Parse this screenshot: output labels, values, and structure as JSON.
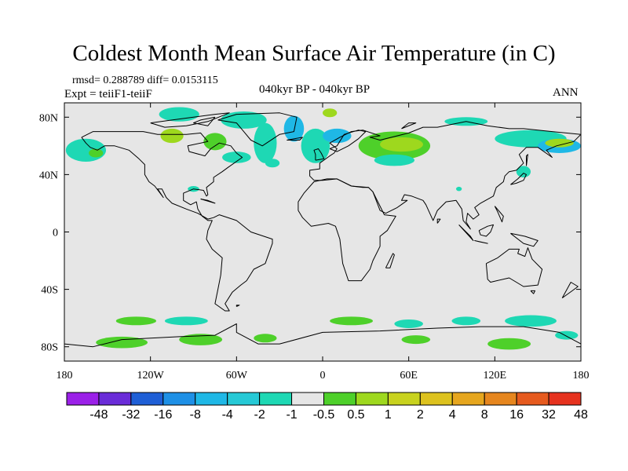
{
  "title": "Coldest Month Mean Surface Air Temperature (in C)",
  "stats_line": "rmsd= 0.288789 diff= 0.0153115",
  "experiment_line": "Expt = teiiF1-teiiF",
  "period_label": "040kyr BP - 040kyr BP",
  "season_label": "ANN",
  "axes": {
    "lon_ticks": [
      {
        "value": -180,
        "label": "180"
      },
      {
        "value": -120,
        "label": "120W"
      },
      {
        "value": -60,
        "label": "60W"
      },
      {
        "value": 0,
        "label": "0"
      },
      {
        "value": 60,
        "label": "60E"
      },
      {
        "value": 120,
        "label": "120E"
      },
      {
        "value": 180,
        "label": "180"
      }
    ],
    "lat_ticks": [
      {
        "value": 80,
        "label": "80N"
      },
      {
        "value": 40,
        "label": "40N"
      },
      {
        "value": 0,
        "label": "0"
      },
      {
        "value": -40,
        "label": "40S"
      },
      {
        "value": -80,
        "label": "80S"
      }
    ],
    "lon_range": [
      -180,
      180
    ],
    "lat_range": [
      -90,
      90
    ]
  },
  "colorbar": {
    "colors": [
      "#9b20e8",
      "#6a2cd8",
      "#1f5fd6",
      "#1e90e6",
      "#1fb8e6",
      "#26c9d6",
      "#1ed8b4",
      "#e6e6e6",
      "#4ed02a",
      "#9ed81e",
      "#c8d21e",
      "#ddc21e",
      "#e6a61e",
      "#e6861e",
      "#e65a1e",
      "#e6321e"
    ],
    "labels": [
      "-48",
      "-32",
      "-16",
      "-8",
      "-4",
      "-2",
      "-1",
      "-0.5",
      "0.5",
      "1",
      "2",
      "4",
      "8",
      "16",
      "32",
      "48"
    ]
  },
  "anomaly_patches": [
    {
      "lon": -100,
      "lat": 82,
      "rx": 14,
      "ry": 5,
      "color": "#1ed8b4"
    },
    {
      "lon": -55,
      "lat": 78,
      "rx": 16,
      "ry": 6,
      "color": "#1ed8b4"
    },
    {
      "lon": -40,
      "lat": 62,
      "rx": 8,
      "ry": 14,
      "color": "#1ed8b4"
    },
    {
      "lon": -20,
      "lat": 72,
      "rx": 7,
      "ry": 9,
      "color": "#1fb8e6"
    },
    {
      "lon": -75,
      "lat": 63,
      "rx": 8,
      "ry": 6,
      "color": "#4ed02a"
    },
    {
      "lon": -105,
      "lat": 67,
      "rx": 8,
      "ry": 5,
      "color": "#9ed81e"
    },
    {
      "lon": -165,
      "lat": 57,
      "rx": 14,
      "ry": 8,
      "color": "#1ed8b4"
    },
    {
      "lon": -158,
      "lat": 55,
      "rx": 5,
      "ry": 3,
      "color": "#4ed02a"
    },
    {
      "lon": -60,
      "lat": 52,
      "rx": 10,
      "ry": 4,
      "color": "#1ed8b4"
    },
    {
      "lon": -35,
      "lat": 48,
      "rx": 5,
      "ry": 3,
      "color": "#1ed8b4"
    },
    {
      "lon": -5,
      "lat": 60,
      "rx": 10,
      "ry": 12,
      "color": "#1ed8b4"
    },
    {
      "lon": 10,
      "lat": 67,
      "rx": 10,
      "ry": 5,
      "color": "#1fb8e6"
    },
    {
      "lon": 5,
      "lat": 83,
      "rx": 5,
      "ry": 3,
      "color": "#9ed81e"
    },
    {
      "lon": 50,
      "lat": 60,
      "rx": 25,
      "ry": 10,
      "color": "#4ed02a"
    },
    {
      "lon": 55,
      "lat": 61,
      "rx": 15,
      "ry": 5,
      "color": "#9ed81e"
    },
    {
      "lon": 50,
      "lat": 50,
      "rx": 14,
      "ry": 4,
      "color": "#1ed8b4"
    },
    {
      "lon": 100,
      "lat": 77,
      "rx": 15,
      "ry": 3,
      "color": "#1ed8b4"
    },
    {
      "lon": 145,
      "lat": 65,
      "rx": 25,
      "ry": 6,
      "color": "#1ed8b4"
    },
    {
      "lon": 165,
      "lat": 60,
      "rx": 15,
      "ry": 5,
      "color": "#1fb8e6"
    },
    {
      "lon": 165,
      "lat": 62,
      "rx": 10,
      "ry": 3,
      "color": "#9ed81e"
    },
    {
      "lon": 140,
      "lat": 42,
      "rx": 5,
      "ry": 4,
      "color": "#1ed8b4"
    },
    {
      "lon": 95,
      "lat": 30,
      "rx": 2,
      "ry": 1.5,
      "color": "#1ed8b4"
    },
    {
      "lon": -90,
      "lat": 30,
      "rx": 4,
      "ry": 2,
      "color": "#1ed8b4"
    },
    {
      "lon": -130,
      "lat": -62,
      "rx": 14,
      "ry": 3,
      "color": "#4ed02a"
    },
    {
      "lon": -95,
      "lat": -62,
      "rx": 15,
      "ry": 3,
      "color": "#1ed8b4"
    },
    {
      "lon": -140,
      "lat": -77,
      "rx": 18,
      "ry": 4,
      "color": "#4ed02a"
    },
    {
      "lon": -85,
      "lat": -75,
      "rx": 15,
      "ry": 4,
      "color": "#4ed02a"
    },
    {
      "lon": -40,
      "lat": -74,
      "rx": 8,
      "ry": 3,
      "color": "#4ed02a"
    },
    {
      "lon": 20,
      "lat": -62,
      "rx": 15,
      "ry": 3,
      "color": "#4ed02a"
    },
    {
      "lon": 60,
      "lat": -64,
      "rx": 10,
      "ry": 3,
      "color": "#1ed8b4"
    },
    {
      "lon": 65,
      "lat": -75,
      "rx": 10,
      "ry": 3,
      "color": "#4ed02a"
    },
    {
      "lon": 100,
      "lat": -62,
      "rx": 10,
      "ry": 3,
      "color": "#1ed8b4"
    },
    {
      "lon": 145,
      "lat": -62,
      "rx": 18,
      "ry": 4,
      "color": "#1ed8b4"
    },
    {
      "lon": 130,
      "lat": -78,
      "rx": 15,
      "ry": 4,
      "color": "#4ed02a"
    },
    {
      "lon": 170,
      "lat": -72,
      "rx": 8,
      "ry": 3,
      "color": "#1ed8b4"
    }
  ],
  "coastlines": [
    [
      [
        -168,
        66
      ],
      [
        -160,
        70
      ],
      [
        -140,
        70
      ],
      [
        -125,
        70
      ],
      [
        -115,
        68
      ],
      [
        -95,
        68
      ],
      [
        -85,
        69
      ],
      [
        -80,
        63
      ],
      [
        -94,
        60
      ],
      [
        -93,
        56
      ],
      [
        -82,
        53
      ],
      [
        -78,
        58
      ],
      [
        -72,
        62
      ],
      [
        -64,
        60
      ],
      [
        -60,
        55
      ],
      [
        -56,
        52
      ],
      [
        -66,
        45
      ],
      [
        -70,
        42
      ],
      [
        -76,
        38
      ],
      [
        -76,
        35
      ],
      [
        -81,
        31
      ],
      [
        -80,
        26
      ],
      [
        -81,
        25
      ],
      [
        -83,
        29
      ],
      [
        -90,
        30
      ],
      [
        -97,
        27
      ],
      [
        -97,
        22
      ],
      [
        -92,
        19
      ],
      [
        -88,
        21
      ],
      [
        -87,
        16
      ],
      [
        -84,
        11
      ],
      [
        -80,
        8
      ],
      [
        -77,
        8
      ],
      [
        -80,
        1
      ],
      [
        -81,
        -5
      ],
      [
        -77,
        -12
      ],
      [
        -70,
        -18
      ],
      [
        -71,
        -30
      ],
      [
        -73,
        -40
      ],
      [
        -75,
        -50
      ],
      [
        -68,
        -55
      ],
      [
        -65,
        -55
      ],
      [
        -68,
        -50
      ],
      [
        -63,
        -42
      ],
      [
        -57,
        -37
      ],
      [
        -53,
        -34
      ],
      [
        -48,
        -26
      ],
      [
        -40,
        -22
      ],
      [
        -35,
        -8
      ],
      [
        -35,
        -5
      ],
      [
        -50,
        0
      ],
      [
        -60,
        8
      ],
      [
        -72,
        12
      ],
      [
        -76,
        10
      ],
      [
        -80,
        9
      ],
      [
        -87,
        13
      ],
      [
        -95,
        16
      ],
      [
        -105,
        20
      ],
      [
        -109,
        24
      ],
      [
        -112,
        30
      ],
      [
        -115,
        30
      ],
      [
        -111,
        24
      ],
      [
        -117,
        32
      ],
      [
        -121,
        35
      ],
      [
        -124,
        40
      ],
      [
        -124,
        47
      ],
      [
        -128,
        51
      ],
      [
        -135,
        57
      ],
      [
        -145,
        60
      ],
      [
        -152,
        60
      ],
      [
        -157,
        57
      ],
      [
        -162,
        59
      ],
      [
        -165,
        62
      ],
      [
        -168,
        66
      ]
    ],
    [
      [
        -73,
        78
      ],
      [
        -60,
        82
      ],
      [
        -30,
        83
      ],
      [
        -18,
        80
      ],
      [
        -20,
        70
      ],
      [
        -30,
        68
      ],
      [
        -42,
        60
      ],
      [
        -50,
        64
      ],
      [
        -55,
        70
      ],
      [
        -60,
        76
      ],
      [
        -73,
        78
      ]
    ],
    [
      [
        -120,
        76
      ],
      [
        -105,
        78
      ],
      [
        -90,
        80
      ],
      [
        -75,
        82
      ],
      [
        -65,
        83
      ],
      [
        -80,
        77
      ],
      [
        -95,
        74
      ],
      [
        -110,
        73
      ],
      [
        -120,
        76
      ]
    ],
    [
      [
        -6,
        36
      ],
      [
        -9,
        39
      ],
      [
        -9,
        43
      ],
      [
        -2,
        44
      ],
      [
        -2,
        48
      ],
      [
        5,
        53
      ],
      [
        8,
        55
      ],
      [
        10,
        58
      ],
      [
        5,
        62
      ],
      [
        12,
        66
      ],
      [
        20,
        70
      ],
      [
        28,
        71
      ],
      [
        40,
        67
      ],
      [
        33,
        66
      ],
      [
        40,
        64
      ],
      [
        60,
        69
      ],
      [
        70,
        73
      ],
      [
        80,
        73
      ],
      [
        100,
        77
      ],
      [
        115,
        74
      ],
      [
        130,
        72
      ],
      [
        140,
        72
      ],
      [
        160,
        70
      ],
      [
        180,
        68
      ],
      [
        175,
        63
      ],
      [
        163,
        60
      ],
      [
        156,
        57
      ],
      [
        160,
        52
      ],
      [
        150,
        59
      ],
      [
        142,
        59
      ],
      [
        137,
        54
      ],
      [
        140,
        48
      ],
      [
        135,
        43
      ],
      [
        130,
        42
      ],
      [
        127,
        39
      ],
      [
        126,
        35
      ],
      [
        121,
        31
      ],
      [
        119,
        25
      ],
      [
        110,
        20
      ],
      [
        106,
        17
      ],
      [
        109,
        12
      ],
      [
        105,
        9
      ],
      [
        101,
        13
      ],
      [
        100,
        7
      ],
      [
        103,
        2
      ],
      [
        98,
        8
      ],
      [
        97,
        16
      ],
      [
        93,
        22
      ],
      [
        86,
        21
      ],
      [
        80,
        15
      ],
      [
        77,
        8
      ],
      [
        72,
        19
      ],
      [
        70,
        22
      ],
      [
        62,
        25
      ],
      [
        57,
        26
      ],
      [
        55,
        22
      ],
      [
        59,
        22
      ],
      [
        52,
        17
      ],
      [
        44,
        13
      ],
      [
        40,
        15
      ],
      [
        35,
        28
      ],
      [
        32,
        31
      ],
      [
        28,
        31
      ],
      [
        20,
        32
      ],
      [
        10,
        37
      ],
      [
        0,
        36
      ],
      [
        -6,
        36
      ]
    ],
    [
      [
        -17,
        15
      ],
      [
        -17,
        21
      ],
      [
        -13,
        27
      ],
      [
        -6,
        35
      ],
      [
        3,
        37
      ],
      [
        10,
        37
      ],
      [
        20,
        32
      ],
      [
        32,
        31
      ],
      [
        35,
        28
      ],
      [
        43,
        12
      ],
      [
        51,
        11
      ],
      [
        45,
        1
      ],
      [
        40,
        -3
      ],
      [
        40,
        -10
      ],
      [
        35,
        -20
      ],
      [
        33,
        -26
      ],
      [
        27,
        -34
      ],
      [
        18,
        -34
      ],
      [
        14,
        -22
      ],
      [
        12,
        -5
      ],
      [
        9,
        4
      ],
      [
        4,
        6
      ],
      [
        -8,
        4
      ],
      [
        -14,
        10
      ],
      [
        -17,
        15
      ]
    ],
    [
      [
        114,
        -22
      ],
      [
        122,
        -18
      ],
      [
        130,
        -12
      ],
      [
        137,
        -12
      ],
      [
        136,
        -15
      ],
      [
        141,
        -17
      ],
      [
        143,
        -11
      ],
      [
        146,
        -19
      ],
      [
        153,
        -26
      ],
      [
        150,
        -37
      ],
      [
        140,
        -38
      ],
      [
        135,
        -35
      ],
      [
        130,
        -32
      ],
      [
        117,
        -35
      ],
      [
        115,
        -33
      ],
      [
        114,
        -22
      ]
    ],
    [
      [
        -180,
        -78
      ],
      [
        -160,
        -80
      ],
      [
        -140,
        -75
      ],
      [
        -100,
        -73
      ],
      [
        -75,
        -72
      ],
      [
        -60,
        -64
      ],
      [
        -60,
        -70
      ],
      [
        -45,
        -78
      ],
      [
        -30,
        -78
      ],
      [
        0,
        -70
      ],
      [
        40,
        -69
      ],
      [
        80,
        -67
      ],
      [
        110,
        -66
      ],
      [
        140,
        -66
      ],
      [
        165,
        -70
      ],
      [
        180,
        -78
      ]
    ],
    [
      [
        -5,
        50
      ],
      [
        1,
        51
      ],
      [
        -1,
        55
      ],
      [
        -3,
        58
      ],
      [
        -6,
        57
      ],
      [
        -5,
        54
      ],
      [
        -5,
        50
      ]
    ],
    [
      [
        5,
        58
      ],
      [
        10,
        60
      ],
      [
        15,
        68
      ],
      [
        25,
        71
      ],
      [
        30,
        70
      ],
      [
        25,
        65
      ],
      [
        18,
        60
      ],
      [
        10,
        56
      ],
      [
        5,
        58
      ]
    ],
    [
      [
        131,
        33
      ],
      [
        135,
        34
      ],
      [
        140,
        36
      ],
      [
        142,
        40
      ],
      [
        140,
        41
      ],
      [
        136,
        37
      ],
      [
        131,
        33
      ]
    ],
    [
      [
        95,
        5
      ],
      [
        105,
        -6
      ],
      [
        103,
        -3
      ],
      [
        95,
        5
      ]
    ],
    [
      [
        110,
        -7
      ],
      [
        115,
        -8
      ],
      [
        106,
        -6
      ],
      [
        110,
        -7
      ]
    ],
    [
      [
        109,
        1
      ],
      [
        115,
        4
      ],
      [
        119,
        5
      ],
      [
        117,
        0
      ],
      [
        114,
        -3
      ],
      [
        110,
        -2
      ],
      [
        109,
        1
      ]
    ],
    [
      [
        131,
        -1
      ],
      [
        141,
        -3
      ],
      [
        150,
        -6
      ],
      [
        147,
        -10
      ],
      [
        140,
        -8
      ],
      [
        131,
        -1
      ]
    ],
    [
      [
        44,
        -25
      ],
      [
        49,
        -15
      ],
      [
        50,
        -16
      ],
      [
        47,
        -25
      ],
      [
        44,
        -25
      ]
    ],
    [
      [
        167,
        -46
      ],
      [
        174,
        -41
      ],
      [
        178,
        -38
      ],
      [
        173,
        -35
      ],
      [
        167,
        -46
      ]
    ],
    [
      [
        -85,
        23
      ],
      [
        -75,
        20
      ],
      [
        -80,
        22
      ],
      [
        -85,
        23
      ]
    ],
    [
      [
        -25,
        64
      ],
      [
        -14,
        66
      ],
      [
        -16,
        64
      ],
      [
        -25,
        64
      ]
    ],
    [
      [
        145,
        -41
      ],
      [
        148,
        -41
      ],
      [
        147,
        -43
      ],
      [
        145,
        -41
      ]
    ],
    [
      [
        80,
        6
      ],
      [
        82,
        9
      ],
      [
        80,
        9
      ],
      [
        80,
        6
      ]
    ],
    [
      [
        120,
        18
      ],
      [
        122,
        14
      ],
      [
        125,
        7
      ],
      [
        126,
        11
      ],
      [
        120,
        18
      ]
    ],
    [
      [
        -60,
        -52
      ],
      [
        -58,
        -51
      ],
      [
        -60,
        -51
      ],
      [
        -60,
        -52
      ]
    ],
    [
      [
        -75,
        80
      ],
      [
        -85,
        78
      ],
      [
        -90,
        76
      ],
      [
        -80,
        74
      ],
      [
        -75,
        80
      ]
    ],
    [
      [
        142,
        46
      ],
      [
        143,
        54
      ],
      [
        142,
        53
      ],
      [
        142,
        46
      ]
    ],
    [
      [
        55,
        72
      ],
      [
        60,
        76
      ],
      [
        65,
        76
      ],
      [
        55,
        72
      ]
    ]
  ]
}
